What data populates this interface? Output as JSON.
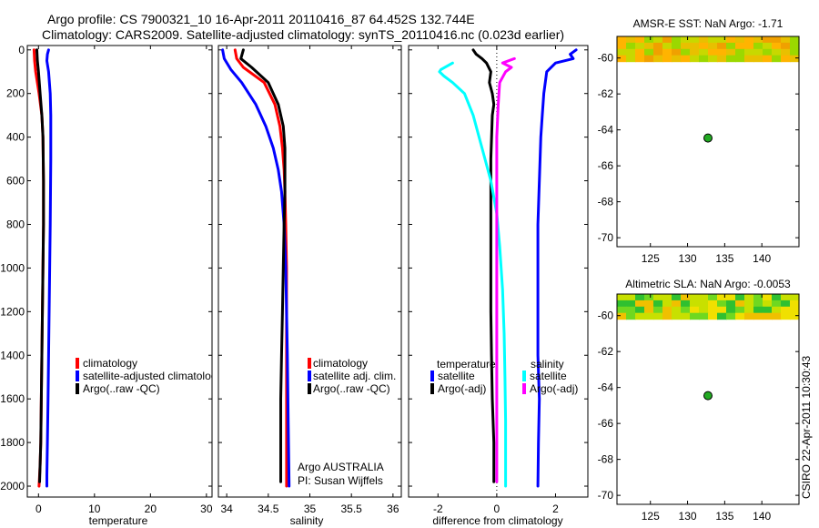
{
  "header": {
    "title_line1": "Argo profile: CS 7900321_10 16-Apr-2011 20110416_87 64.452S 132.744E",
    "title_line2": "Climatology: CARS2009. Satellite-adjusted climatology: synTS_20110416.nc (0.023d earlier)"
  },
  "side_label": "CSIRO 22-Apr-2011 10:30:43",
  "colors": {
    "climatology": "#ff0000",
    "satellite": "#0000ff",
    "argo": "#000000",
    "sat_salinity_diff": "#00ffff",
    "argo_salinity_diff": "#ff00ff",
    "marker": "#22aa22"
  },
  "chart_data": [
    {
      "id": "temperature",
      "type": "line",
      "xlabel": "temperature",
      "xlim": [
        -2,
        31
      ],
      "xticks": [
        "0",
        "10",
        "20",
        "30"
      ],
      "ylim": [
        2050,
        -20
      ],
      "yticks": [
        "0",
        "200",
        "400",
        "600",
        "800",
        "1000",
        "1200",
        "1400",
        "1600",
        "1800",
        "2000"
      ],
      "legend": {
        "items": [
          "climatology",
          "satellite-adjusted climatology",
          "Argo(..raw -QC)"
        ]
      },
      "series": [
        {
          "name": "climatology",
          "color": "#ff0000",
          "x": [
            -0.8,
            -0.7,
            -0.5,
            0.1,
            0.6,
            0.8,
            0.9,
            0.9,
            0.8,
            0.7,
            0.6,
            0.5,
            0.4,
            0.3,
            0.2,
            0.1
          ],
          "y": [
            0,
            50,
            100,
            200,
            300,
            400,
            600,
            800,
            1000,
            1200,
            1400,
            1600,
            1800,
            1900,
            1950,
            2000
          ]
        },
        {
          "name": "satellite-adjusted climatology",
          "color": "#0000ff",
          "x": [
            1.8,
            1.6,
            1.5,
            1.8,
            2.1,
            2.2,
            2.2,
            2.1,
            2.0,
            1.9,
            1.8,
            1.7,
            1.6,
            1.5,
            1.5
          ],
          "y": [
            0,
            20,
            50,
            100,
            200,
            300,
            500,
            800,
            1000,
            1200,
            1400,
            1600,
            1800,
            1950,
            2000
          ]
        },
        {
          "name": "Argo(..raw -QC)",
          "color": "#000000",
          "x": [
            -0.3,
            -0.2,
            0.0,
            0.3,
            0.6,
            0.8,
            0.9,
            0.9,
            0.8,
            0.7,
            0.6,
            0.5,
            0.4,
            0.3,
            0.2
          ],
          "y": [
            0,
            50,
            100,
            200,
            300,
            400,
            600,
            800,
            1000,
            1200,
            1400,
            1600,
            1800,
            1900,
            1980
          ]
        }
      ]
    },
    {
      "id": "salinity",
      "type": "line",
      "xlabel": "salinity",
      "xlim": [
        33.9,
        36.1
      ],
      "xticks": [
        "34",
        "34.5",
        "35",
        "35.5",
        "36"
      ],
      "ylim": [
        2050,
        -20
      ],
      "legend": {
        "items": [
          "climatology",
          "satellite adj. clim.",
          "Argo(..raw -QC)"
        ]
      },
      "annotation": [
        "Argo AUSTRALIA",
        "PI: Susan Wijffels"
      ],
      "series": [
        {
          "name": "climatology",
          "color": "#ff0000",
          "x": [
            34.1,
            34.12,
            34.2,
            34.45,
            34.58,
            34.64,
            34.67,
            34.69,
            34.7,
            34.71,
            34.72,
            34.72,
            34.72,
            34.72,
            34.72,
            34.72
          ],
          "y": [
            0,
            40,
            80,
            150,
            250,
            350,
            450,
            550,
            650,
            800,
            1000,
            1200,
            1400,
            1600,
            1800,
            2000
          ]
        },
        {
          "name": "satellite adj. clim.",
          "color": "#0000ff",
          "x": [
            33.95,
            33.97,
            34.05,
            34.18,
            34.35,
            34.47,
            34.56,
            34.62,
            34.66,
            34.69,
            34.7,
            34.71,
            34.72,
            34.73,
            34.74,
            34.75
          ],
          "y": [
            0,
            40,
            90,
            150,
            250,
            350,
            450,
            550,
            650,
            800,
            900,
            1000,
            1200,
            1400,
            1700,
            2000
          ]
        },
        {
          "name": "Argo(..raw -QC)",
          "color": "#000000",
          "x": [
            34.2,
            34.17,
            34.3,
            34.5,
            34.62,
            34.68,
            34.7,
            34.7,
            34.7,
            34.69,
            34.68,
            34.67,
            34.66,
            34.65,
            34.65,
            34.65
          ],
          "y": [
            0,
            40,
            80,
            150,
            250,
            350,
            450,
            550,
            650,
            800,
            1000,
            1200,
            1400,
            1600,
            1800,
            1980
          ]
        }
      ]
    },
    {
      "id": "difference",
      "type": "line",
      "xlabel": "difference from climatology",
      "xlim": [
        -3.0,
        3.1
      ],
      "xticks": [
        "-2",
        "0",
        "2"
      ],
      "ylim": [
        2050,
        -20
      ],
      "zero_line": true,
      "legend": {
        "temperature_heading": "temperature",
        "salinity_heading": "salinity",
        "items": [
          "satellite",
          "Argo(-adj)",
          "satellite",
          "Argo(-adj)"
        ]
      },
      "series": [
        {
          "name": "temperature satellite",
          "color": "#0000ff",
          "x": [
            2.7,
            2.5,
            2.6,
            2.0,
            1.7,
            1.6,
            1.55,
            1.5,
            1.45,
            1.4,
            1.4,
            1.4,
            1.4,
            1.45,
            1.42,
            1.4
          ],
          "y": [
            0,
            20,
            40,
            60,
            100,
            200,
            300,
            400,
            600,
            800,
            1000,
            1200,
            1400,
            1600,
            1800,
            2000
          ]
        },
        {
          "name": "temperature Argo(-adj)",
          "color": "#000000",
          "x": [
            -0.8,
            -0.7,
            -0.5,
            -0.35,
            -0.2,
            -0.25,
            -0.15,
            -0.1,
            -0.15,
            -0.2,
            -0.2,
            -0.2,
            -0.2,
            -0.18,
            -0.15,
            -0.1,
            -0.1
          ],
          "y": [
            0,
            20,
            40,
            60,
            100,
            150,
            200,
            250,
            300,
            500,
            700,
            1000,
            1200,
            1400,
            1600,
            1800,
            1980
          ]
        },
        {
          "name": "salinity satellite",
          "color": "#00ffff",
          "x": [
            -1.5,
            -1.9,
            -1.95,
            -1.8,
            -1.5,
            -1.1,
            -0.8,
            -0.5,
            -0.2,
            0.0,
            0.1,
            0.2,
            0.25,
            0.28,
            0.3,
            0.3
          ],
          "y": [
            60,
            90,
            100,
            120,
            150,
            200,
            300,
            450,
            600,
            750,
            900,
            1100,
            1300,
            1500,
            1700,
            2000
          ]
        },
        {
          "name": "salinity Argo(-adj)",
          "color": "#ff00ff",
          "x": [
            0.6,
            0.2,
            0.5,
            0.3,
            0.1,
            0.05,
            0.0,
            0.0,
            0.0,
            0.0,
            0.0,
            0.0
          ],
          "y": [
            40,
            60,
            80,
            100,
            150,
            250,
            400,
            800,
            1200,
            1600,
            1800,
            1980
          ]
        }
      ]
    },
    {
      "id": "sst_map",
      "type": "heatmap",
      "title": "AMSR-E SST: NaN Argo: -1.71",
      "xlim": [
        120.5,
        145
      ],
      "ylim": [
        -70.5,
        -58.8
      ],
      "xticks": [
        "125",
        "130",
        "135",
        "140"
      ],
      "yticks": [
        "-60",
        "-62",
        "-64",
        "-66",
        "-68",
        "-70"
      ],
      "data_band": {
        "lat_range": [
          -60.2,
          -58.8
        ],
        "colors": [
          "#f0a000",
          "#ffb400",
          "#e8c000",
          "#c8d800",
          "#9bd800"
        ]
      },
      "marker": {
        "lon": 132.744,
        "lat": -64.452
      }
    },
    {
      "id": "sla_map",
      "type": "heatmap",
      "title": "Altimetric SLA: NaN Argo: -0.0053",
      "xlim": [
        120.5,
        145
      ],
      "ylim": [
        -70.5,
        -58.8
      ],
      "xticks": [
        "125",
        "130",
        "135",
        "140"
      ],
      "yticks": [
        "-60",
        "-62",
        "-64",
        "-66",
        "-68",
        "-70"
      ],
      "data_band": {
        "lat_range": [
          -60.2,
          -58.8
        ],
        "colors": [
          "#2fc030",
          "#6fd820",
          "#c8e000",
          "#f0e000",
          "#f0c000"
        ]
      },
      "marker": {
        "lon": 132.744,
        "lat": -64.452
      }
    }
  ]
}
